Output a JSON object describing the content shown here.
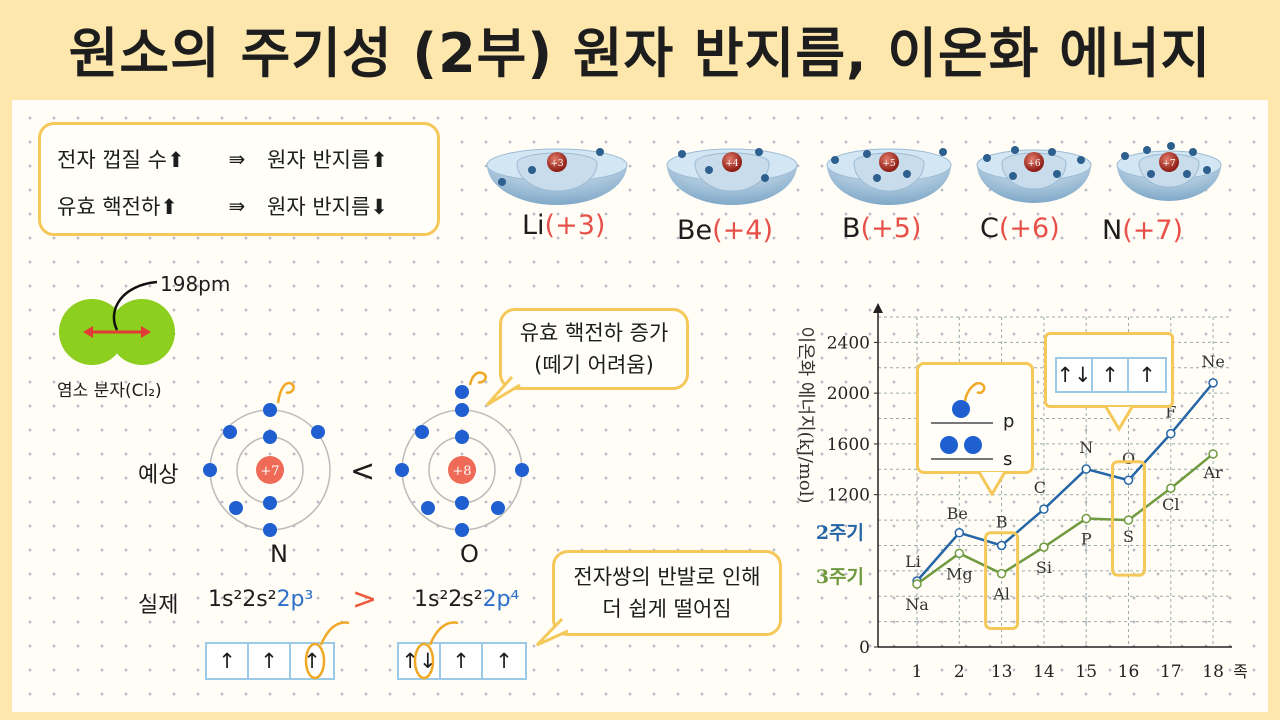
{
  "title": "원소의 주기성 (2부) 원자 반지름, 이온화 에너지",
  "rules": [
    {
      "lhs": "전자 껍질 수⬆",
      "imp": "⇛",
      "rhs": "원자 반지름⬆"
    },
    {
      "lhs": "유효 핵전하⬆",
      "imp": "⇛",
      "rhs": "원자 반지름⬇"
    }
  ],
  "atoms": [
    {
      "symbol": "Li",
      "charge": "(+3)",
      "nucleus": "+3"
    },
    {
      "symbol": "Be",
      "charge": "(+4)",
      "nucleus": "+4"
    },
    {
      "symbol": "B",
      "charge": "(+5)",
      "nucleus": "+5"
    },
    {
      "symbol": "C",
      "charge": "(+6)",
      "nucleus": "+6"
    },
    {
      "symbol": "N",
      "charge": "(+7)",
      "nucleus": "+7"
    }
  ],
  "chlorine": {
    "bond_length": "198pm",
    "caption": "염소 분자(Cl₂)"
  },
  "comparison": {
    "expected_label": "예상",
    "actual_label": "실제",
    "less_than": "<",
    "greater_than": ">",
    "left_atom": {
      "symbol": "N",
      "nucleus": "+7",
      "config_base": "1s²2s²",
      "config_p": "2p³"
    },
    "right_atom": {
      "symbol": "O",
      "nucleus": "+8",
      "config_base": "1s²2s²",
      "config_p": "2p⁴"
    },
    "n_orbitals": [
      "↑",
      "↑",
      "↑"
    ],
    "o_orbitals": [
      "↑↓",
      "↑",
      "↑"
    ]
  },
  "bubbles": {
    "effective_charge": "유효 핵전하 증가\n(떼기 어려움)",
    "repulsion": "전자쌍의 반발로 인해\n더 쉽게 떨어짐"
  },
  "inset_ps": {
    "p_label": "p",
    "s_label": "s"
  },
  "inset_o_orbitals": [
    "↑↓",
    "↑",
    "↑"
  ],
  "chart_data": {
    "type": "line",
    "ylabel": "이온화 에너지(kJ/mol)",
    "xlabel_suffix": "족",
    "categories": [
      "1",
      "2",
      "13",
      "14",
      "15",
      "16",
      "17",
      "18"
    ],
    "yticks": [
      0,
      1200,
      1600,
      2000,
      2400
    ],
    "ylim": [
      0,
      2600
    ],
    "series": [
      {
        "name": "2주기",
        "color": "#2666a6",
        "elements": [
          "Li",
          "Be",
          "B",
          "C",
          "N",
          "O",
          "F",
          "Ne"
        ],
        "values": [
          520,
          900,
          800,
          1086,
          1402,
          1314,
          1681,
          2081
        ]
      },
      {
        "name": "3주기",
        "color": "#6f9a3f",
        "elements": [
          "Na",
          "Mg",
          "Al",
          "Si",
          "P",
          "S",
          "Cl",
          "Ar"
        ],
        "values": [
          496,
          738,
          578,
          787,
          1012,
          1000,
          1251,
          1521
        ]
      }
    ]
  }
}
